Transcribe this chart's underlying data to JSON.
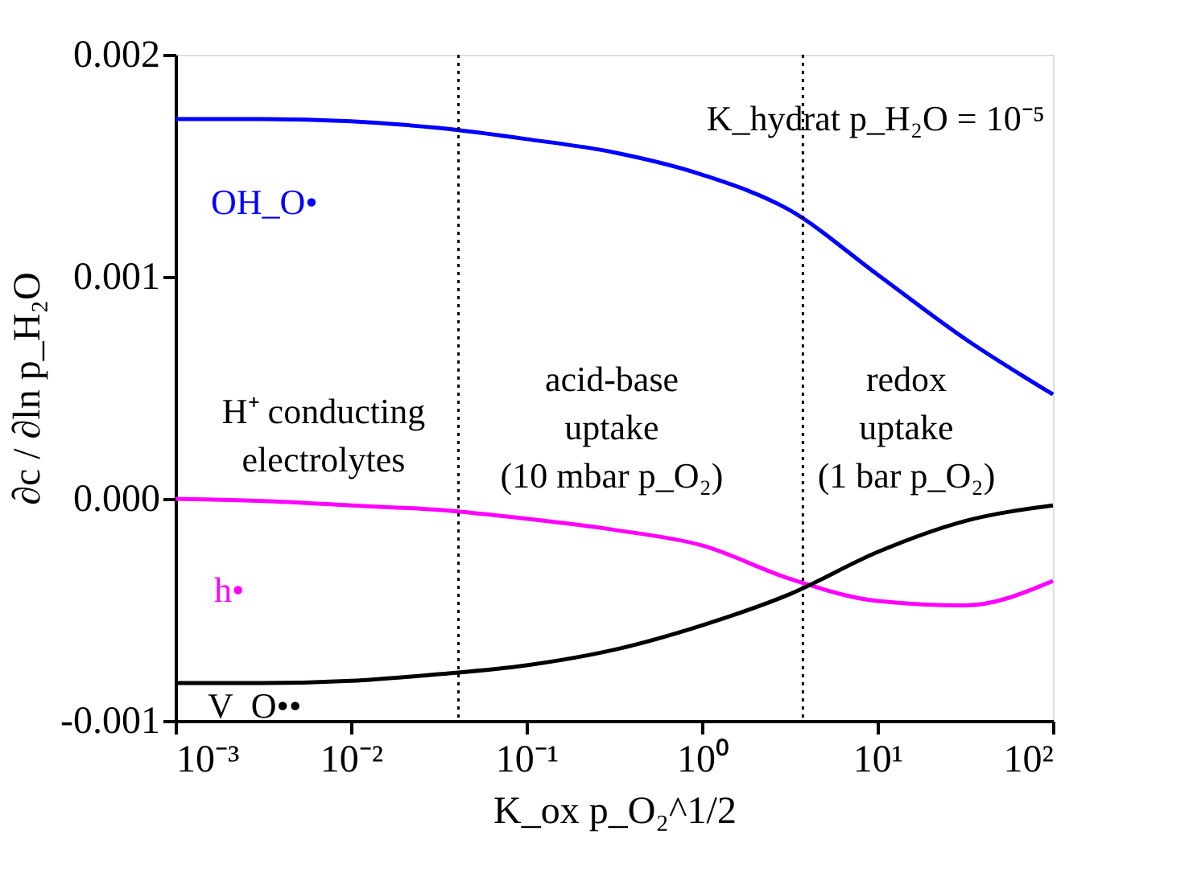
{
  "chart_data": {
    "type": "line",
    "xlabel": "K_ox p_O₂^1/2",
    "ylabel": "∂c / ∂ln p_H₂O",
    "x": [
      0.001,
      0.00316,
      0.01,
      0.0316,
      0.1,
      0.316,
      1,
      3.16,
      10,
      31.6,
      100
    ],
    "series": [
      {
        "name": "OH_O•",
        "color": "#0000ff",
        "values": [
          0.00171,
          0.00171,
          0.0017,
          0.00167,
          0.00162,
          0.00156,
          0.00146,
          0.0013,
          0.00101,
          0.00072,
          0.00047
        ]
      },
      {
        "name": "h•",
        "color": "#ff00ff",
        "values": [
          0,
          -1e-05,
          -3e-05,
          -5e-05,
          -9e-05,
          -0.00014,
          -0.00021,
          -0.00036,
          -0.00046,
          -0.00048,
          -0.00037
        ]
      },
      {
        "name": "V_O••",
        "color": "#000000",
        "values": [
          -0.00083,
          -0.00083,
          -0.00082,
          -0.00079,
          -0.00075,
          -0.00068,
          -0.00057,
          -0.00043,
          -0.00024,
          -0.0001,
          -3e-05
        ]
      }
    ],
    "log": "x",
    "xlim": [
      0.001,
      100
    ],
    "xticks": [
      {
        "value": 0.001,
        "label": "10⁻³"
      },
      {
        "value": 0.01,
        "label": "10⁻²"
      },
      {
        "value": 0.1,
        "label": "10⁻¹"
      },
      {
        "value": 1,
        "label": "10⁰"
      },
      {
        "value": 10,
        "label": "10¹"
      },
      {
        "value": 100,
        "label": "10²"
      }
    ],
    "ylim": [
      -0.001,
      0.002
    ],
    "yticks": [
      {
        "value": -0.001,
        "label": "-0.001"
      },
      {
        "value": 0,
        "label": "0.000"
      },
      {
        "value": 0.001,
        "label": "0.001"
      },
      {
        "value": 0.002,
        "label": "0.002"
      }
    ],
    "ref_lines": [
      {
        "axis": "x",
        "value": 0.041,
        "line_style": "dotted",
        "color": "#000000"
      },
      {
        "axis": "x",
        "value": 3.76,
        "line_style": "dotted",
        "color": "#000000"
      }
    ],
    "annotations": [
      "H⁺ conducting\nelectrolytes",
      "acid-base\nuptake\n(10 mbar p_O₂)",
      "redox\nuptake\n(1 bar p_O₂)",
      "K_hydrat p_H₂O = 10⁻⁵"
    ],
    "line_style": "solid",
    "marker": "none"
  }
}
